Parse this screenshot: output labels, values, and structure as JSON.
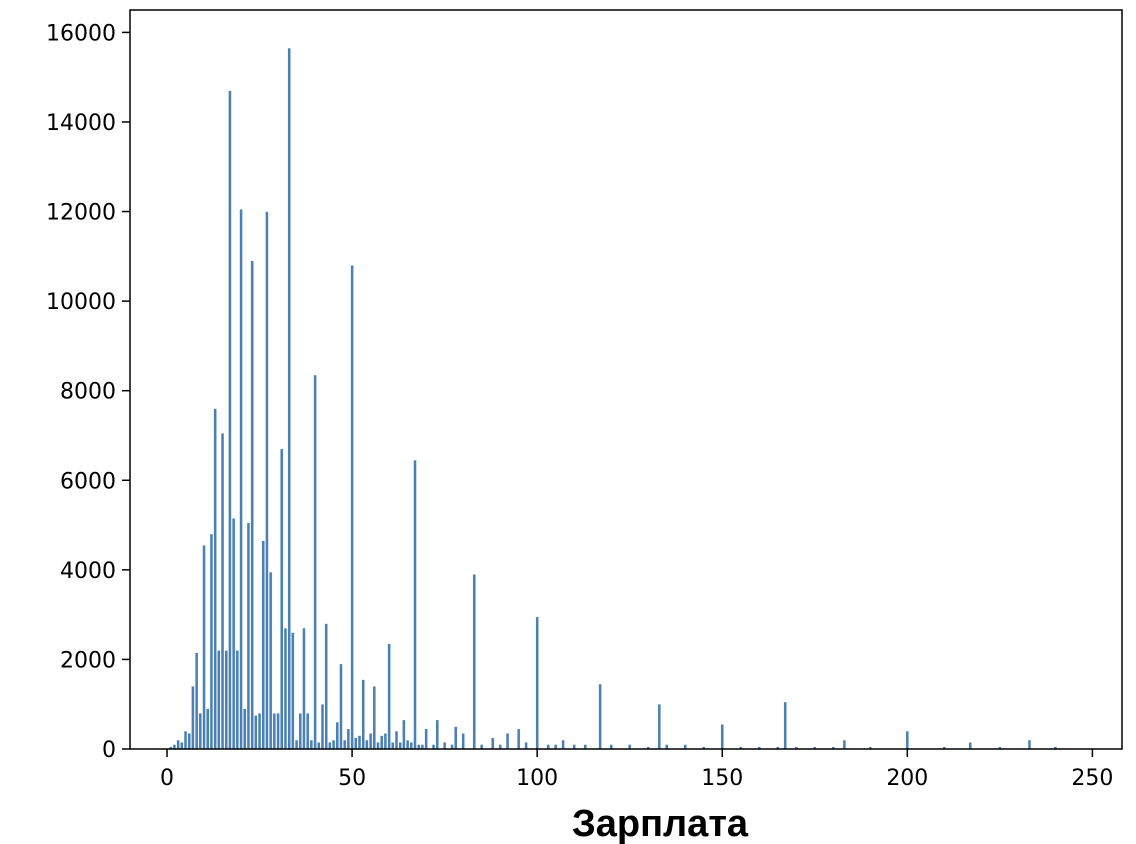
{
  "chart_data": {
    "type": "bar",
    "title": "",
    "xlabel": "Зарплата",
    "ylabel": "",
    "xlim": [
      -10,
      258
    ],
    "ylim": [
      0,
      16500
    ],
    "xticks": [
      0,
      50,
      100,
      150,
      200,
      250
    ],
    "yticks": [
      0,
      2000,
      4000,
      6000,
      8000,
      10000,
      12000,
      14000,
      16000
    ],
    "grid": false,
    "bar_color": "#4a80b3",
    "bar_width": 0.8,
    "series": [
      {
        "x": [
          1,
          2,
          3,
          4,
          5,
          6,
          7,
          8,
          9,
          10,
          11,
          12,
          13,
          14,
          15,
          16,
          17,
          18,
          19,
          20,
          21,
          22,
          23,
          24,
          25,
          26,
          27,
          28,
          29,
          30,
          31,
          32,
          33,
          34,
          35,
          36,
          37,
          38,
          39,
          40,
          41,
          42,
          43,
          44,
          45,
          46,
          47,
          48,
          49,
          50,
          51,
          52,
          53,
          54,
          55,
          56,
          57,
          58,
          59,
          60,
          61,
          62,
          63,
          64,
          65,
          66,
          67,
          68,
          69,
          70,
          72,
          73,
          75,
          77,
          78,
          80,
          83,
          85,
          88,
          90,
          92,
          95,
          97,
          100,
          103,
          105,
          107,
          110,
          113,
          117,
          120,
          125,
          130,
          133,
          135,
          140,
          145,
          150,
          155,
          160,
          165,
          167,
          170,
          175,
          180,
          183,
          190,
          200,
          210,
          217,
          225,
          233,
          240
        ],
        "y": [
          50,
          100,
          200,
          150,
          400,
          350,
          1400,
          2150,
          800,
          4550,
          900,
          4800,
          7600,
          2200,
          7050,
          2200,
          14700,
          5150,
          2200,
          12050,
          900,
          5050,
          10900,
          750,
          800,
          4650,
          12000,
          3950,
          800,
          800,
          6700,
          2700,
          15650,
          2600,
          200,
          800,
          2700,
          800,
          200,
          8350,
          150,
          1000,
          2800,
          150,
          200,
          600,
          1900,
          200,
          450,
          10800,
          250,
          300,
          1550,
          200,
          350,
          1400,
          150,
          300,
          350,
          2350,
          150,
          400,
          150,
          650,
          200,
          150,
          6450,
          100,
          100,
          450,
          100,
          650,
          150,
          100,
          500,
          350,
          3900,
          100,
          250,
          100,
          350,
          450,
          150,
          2950,
          100,
          100,
          200,
          100,
          100,
          1450,
          100,
          100,
          50,
          1000,
          100,
          100,
          50,
          550,
          50,
          50,
          50,
          1050,
          50,
          50,
          50,
          200,
          50,
          400,
          50,
          150,
          50,
          200,
          50
        ]
      }
    ]
  }
}
